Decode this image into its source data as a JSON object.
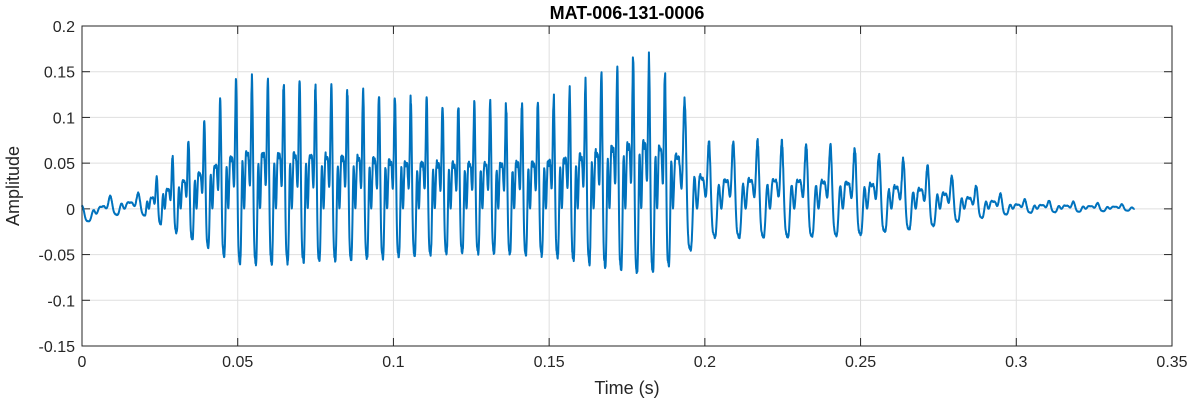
{
  "chart_data": {
    "type": "line",
    "title": "MAT-006-131-0006",
    "xlabel": "Time (s)",
    "ylabel": "Amplitude",
    "xlim": [
      0,
      0.35
    ],
    "ylim": [
      -0.15,
      0.2
    ],
    "xticks": [
      0,
      0.05,
      0.1,
      0.15,
      0.2,
      0.25,
      0.3,
      0.35
    ],
    "xtick_labels": [
      "0",
      "0.05",
      "0.1",
      "0.15",
      "0.2",
      "0.25",
      "0.3",
      "0.35"
    ],
    "yticks": [
      -0.15,
      -0.1,
      -0.05,
      0,
      0.05,
      0.1,
      0.15,
      0.2
    ],
    "ytick_labels": [
      "-0.15",
      "-0.1",
      "-0.05",
      "0",
      "0.05",
      "0.1",
      "0.15",
      "0.2"
    ],
    "grid": true,
    "line_color": "#0072BD",
    "series": [
      {
        "duration": 0.338,
        "envelope": [
          [
            0,
            0.012
          ],
          [
            0.02,
            0.015
          ],
          [
            0.03,
            0.05
          ],
          [
            0.04,
            0.08
          ],
          [
            0.05,
            0.115
          ],
          [
            0.1,
            0.125
          ],
          [
            0.15,
            0.125
          ],
          [
            0.18,
            0.15
          ],
          [
            0.19,
            0.12
          ],
          [
            0.2,
            0.06
          ],
          [
            0.25,
            0.06
          ],
          [
            0.27,
            0.05
          ],
          [
            0.285,
            0.03
          ],
          [
            0.3,
            0.012
          ],
          [
            0.338,
            0.004
          ]
        ],
        "period_segments": [
          [
            0,
            0.02,
            0.009
          ],
          [
            0.02,
            0.19,
            0.0051
          ],
          [
            0.19,
            0.338,
            0.0078
          ]
        ],
        "y_range_approx": [
          -0.148,
          0.165
        ]
      }
    ]
  }
}
